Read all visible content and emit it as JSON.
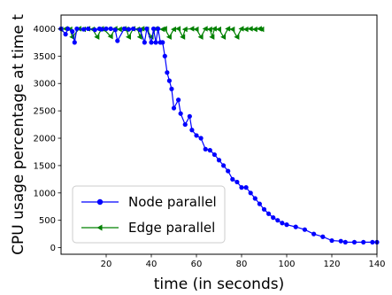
{
  "chart_data": {
    "type": "line",
    "xlabel": "time (in seconds)",
    "ylabel": "CPU usage percentage at time t",
    "xlim": [
      0,
      140
    ],
    "ylim": [
      -120,
      4250
    ],
    "x_ticks": [
      20,
      40,
      60,
      80,
      100,
      120,
      140
    ],
    "y_ticks": [
      0,
      500,
      1000,
      1500,
      2000,
      2500,
      3000,
      3500,
      4000
    ],
    "grid": false,
    "legend_position": "lower-left",
    "series": [
      {
        "name": "Node parallel",
        "color": "#0000ff",
        "marker": "circle",
        "x": [
          0,
          2,
          3,
          5,
          6,
          7,
          10,
          12,
          15,
          17,
          18,
          20,
          22,
          24,
          25,
          28,
          30,
          32,
          35,
          37,
          38,
          40,
          41,
          42,
          43,
          44,
          45,
          46,
          47,
          48,
          49,
          50,
          52,
          53,
          55,
          57,
          58,
          60,
          62,
          64,
          66,
          68,
          70,
          72,
          74,
          76,
          78,
          80,
          82,
          84,
          86,
          88,
          90,
          92,
          94,
          96,
          98,
          100,
          104,
          108,
          112,
          116,
          120,
          124,
          126,
          130,
          134,
          138,
          140
        ],
        "y": [
          4000,
          3900,
          4000,
          3950,
          3750,
          4000,
          3990,
          4000,
          3980,
          4000,
          3990,
          4000,
          4000,
          3980,
          3780,
          4000,
          3990,
          4000,
          3980,
          3750,
          4000,
          3750,
          4000,
          3750,
          4000,
          3750,
          3750,
          3500,
          3200,
          3050,
          2900,
          2550,
          2700,
          2450,
          2250,
          2400,
          2150,
          2050,
          2000,
          1800,
          1780,
          1700,
          1600,
          1500,
          1400,
          1250,
          1200,
          1100,
          1100,
          1000,
          900,
          800,
          700,
          620,
          550,
          500,
          450,
          420,
          380,
          330,
          250,
          200,
          130,
          120,
          100,
          100,
          100,
          100,
          100
        ]
      },
      {
        "name": "Edge parallel",
        "color": "#008000",
        "marker": "triangle-left",
        "x": [
          0,
          2,
          4,
          5,
          8,
          10,
          12,
          14,
          16,
          18,
          19,
          22,
          24,
          26,
          28,
          29,
          30,
          32,
          34,
          35,
          36,
          38,
          40,
          42,
          45,
          46,
          48,
          50,
          52,
          54,
          55,
          58,
          60,
          62,
          64,
          66,
          67,
          68,
          70,
          72,
          74,
          76,
          78,
          80,
          82,
          84,
          86,
          88,
          89
        ],
        "y": [
          3990,
          4000,
          3990,
          3850,
          4000,
          3990,
          4000,
          3990,
          3850,
          4000,
          3990,
          3860,
          4000,
          3990,
          4000,
          3990,
          3850,
          4000,
          3990,
          3850,
          4000,
          3990,
          3850,
          4000,
          3990,
          4000,
          3850,
          3990,
          4000,
          3850,
          3990,
          4000,
          3990,
          3850,
          4000,
          3990,
          3850,
          4000,
          3990,
          3850,
          4000,
          3990,
          3850,
          4000,
          3990,
          4000,
          3990,
          4000,
          3990
        ]
      }
    ]
  }
}
